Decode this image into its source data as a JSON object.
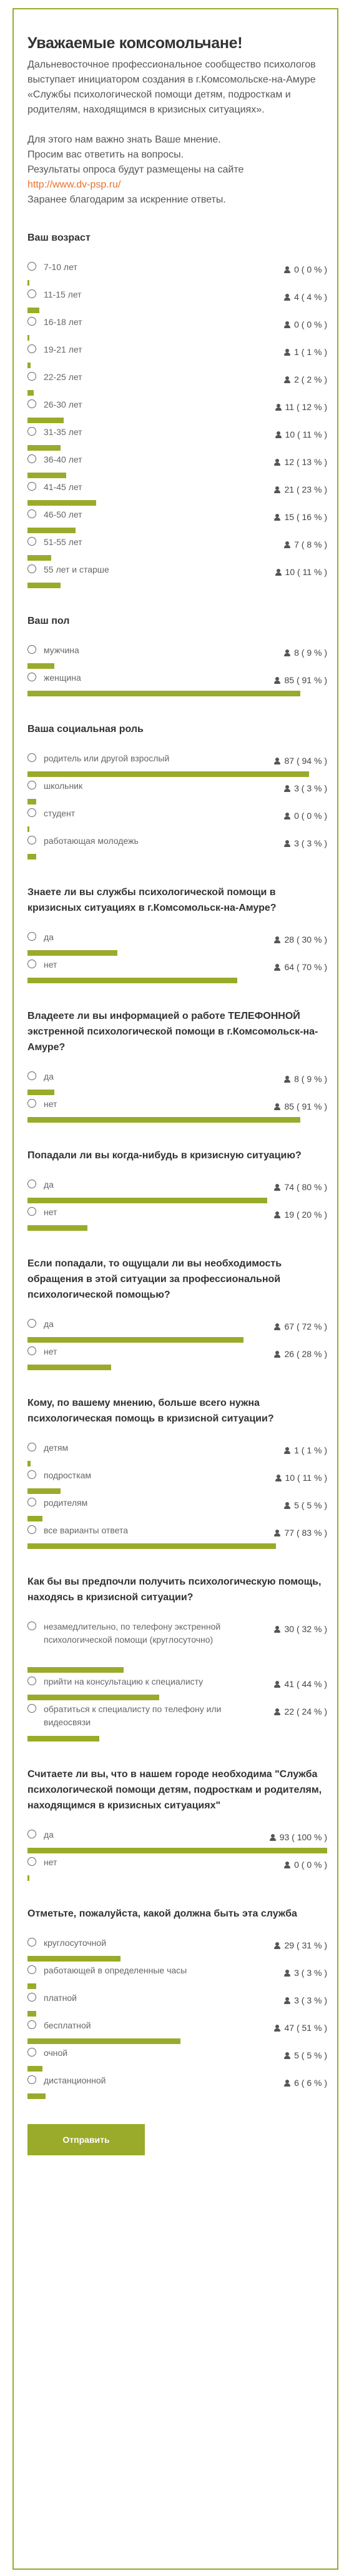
{
  "page": {
    "title": "Уважаемые комсомольчане!",
    "intro": [
      "Дальневосточное профессиональное сообщество психологов выступает инициатором создания в г.Комсомольске-на-Амуре «Службы психологической помощи детям, подросткам и родителям, находящимся в кризисных ситуациях».",
      "",
      "Для этого нам важно знать Ваше мнение.",
      "Просим вас ответить на вопросы.",
      "Результаты опроса будут размещены на сайте",
      "http://www.dv-psp.ru/",
      "Заранее благодарим за искренние ответы."
    ],
    "submit_label": "Отправить",
    "accent_color": "#9aab2b",
    "link_color": "#e8732a"
  },
  "questions": [
    {
      "title": "Ваш возраст",
      "options": [
        {
          "label": "7-10 лет",
          "count": "0",
          "percent": "0 %",
          "fraction": 0.0
        },
        {
          "label": "11-15 лет",
          "count": "4",
          "percent": "4 %",
          "fraction": 0.04
        },
        {
          "label": "16-18 лет",
          "count": "0",
          "percent": "0 %",
          "fraction": 0.0
        },
        {
          "label": "19-21 лет",
          "count": "1",
          "percent": "1 %",
          "fraction": 0.01
        },
        {
          "label": "22-25 лет",
          "count": "2",
          "percent": "2 %",
          "fraction": 0.02
        },
        {
          "label": "26-30 лет",
          "count": "11",
          "percent": "12 %",
          "fraction": 0.12
        },
        {
          "label": "31-35 лет",
          "count": "10",
          "percent": "11 %",
          "fraction": 0.11
        },
        {
          "label": "36-40 лет",
          "count": "12",
          "percent": "13 %",
          "fraction": 0.13
        },
        {
          "label": "41-45 лет",
          "count": "21",
          "percent": "23 %",
          "fraction": 0.23
        },
        {
          "label": "46-50 лет",
          "count": "15",
          "percent": "16 %",
          "fraction": 0.16
        },
        {
          "label": "51-55 лет",
          "count": "7",
          "percent": "8 %",
          "fraction": 0.08
        },
        {
          "label": "55 лет и старше",
          "count": "10",
          "percent": "11 %",
          "fraction": 0.11
        }
      ]
    },
    {
      "title": "Ваш пол",
      "options": [
        {
          "label": "мужчина",
          "count": "8",
          "percent": "9 %",
          "fraction": 0.09
        },
        {
          "label": "женщина",
          "count": "85",
          "percent": "91 %",
          "fraction": 0.91
        }
      ]
    },
    {
      "title": "Ваша социальная роль",
      "options": [
        {
          "label": "родитель или другой взрослый",
          "count": "87",
          "percent": "94 %",
          "fraction": 0.94
        },
        {
          "label": "школьник",
          "count": "3",
          "percent": "3 %",
          "fraction": 0.03
        },
        {
          "label": "студент",
          "count": "0",
          "percent": "0 %",
          "fraction": 0.0
        },
        {
          "label": "работающая молодежь",
          "count": "3",
          "percent": "3 %",
          "fraction": 0.03
        }
      ]
    },
    {
      "title": "Знаете ли вы службы психологической помощи в кризисных ситуациях в г.Комсомольск-на-Амуре?",
      "options": [
        {
          "label": "да",
          "count": "28",
          "percent": "30 %",
          "fraction": 0.3
        },
        {
          "label": "нет",
          "count": "64",
          "percent": "70 %",
          "fraction": 0.7
        }
      ]
    },
    {
      "title": "Владеете ли вы информацией о работе ТЕЛЕФОННОЙ экстренной психологической помощи в г.Комсомольск-на-Амуре?",
      "options": [
        {
          "label": "да",
          "count": "8",
          "percent": "9 %",
          "fraction": 0.09
        },
        {
          "label": "нет",
          "count": "85",
          "percent": "91 %",
          "fraction": 0.91
        }
      ]
    },
    {
      "title": "Попадали ли вы когда-нибудь в кризисную ситуацию?",
      "options": [
        {
          "label": "да",
          "count": "74",
          "percent": "80 %",
          "fraction": 0.8
        },
        {
          "label": "нет",
          "count": "19",
          "percent": "20 %",
          "fraction": 0.2
        }
      ]
    },
    {
      "title": "Если попадали, то ощущали ли вы необходимость обращения в этой ситуации за профессиональной психологической помощью?",
      "options": [
        {
          "label": "да",
          "count": "67",
          "percent": "72 %",
          "fraction": 0.72
        },
        {
          "label": "нет",
          "count": "26",
          "percent": "28 %",
          "fraction": 0.28
        }
      ]
    },
    {
      "title": "Кому, по вашему мнению, больше всего нужна психологическая помощь в кризисной ситуации?",
      "options": [
        {
          "label": "детям",
          "count": "1",
          "percent": "1 %",
          "fraction": 0.01
        },
        {
          "label": "подросткам",
          "count": "10",
          "percent": "11 %",
          "fraction": 0.11
        },
        {
          "label": "родителям",
          "count": "5",
          "percent": "5 %",
          "fraction": 0.05
        },
        {
          "label": "все варианты ответа",
          "count": "77",
          "percent": "83 %",
          "fraction": 0.83
        }
      ]
    },
    {
      "title": "Как бы вы предпочли получить психологическую помощь, находясь в кризисной ситуации?",
      "options": [
        {
          "label": "незамедлительно, по телефону экстренной психологической помощи (круглосуточно)",
          "count": "30",
          "percent": "32 %",
          "fraction": 0.32,
          "lines": 3
        },
        {
          "label": "прийти на консультацию к специалисту",
          "count": "41",
          "percent": "44 %",
          "fraction": 0.44
        },
        {
          "label": "обратиться к специалисту по телефону или видеосвязи",
          "count": "22",
          "percent": "24 %",
          "fraction": 0.24,
          "lines": 2
        }
      ]
    },
    {
      "title": "Считаете ли вы, что в нашем городе необходима \"Служба психологической помощи детям, подросткам и родителям, находящимся в кризисных ситуациях\"",
      "options": [
        {
          "label": "да",
          "count": "93",
          "percent": "100 %",
          "fraction": 1.0
        },
        {
          "label": "нет",
          "count": "0",
          "percent": "0 %",
          "fraction": 0.0
        }
      ]
    },
    {
      "title": "Отметьте, пожалуйста, какой должна быть эта служба",
      "options": [
        {
          "label": "круглосуточной",
          "count": "29",
          "percent": "31 %",
          "fraction": 0.31
        },
        {
          "label": "работающей в определенные часы",
          "count": "3",
          "percent": "3 %",
          "fraction": 0.03
        },
        {
          "label": "платной",
          "count": "3",
          "percent": "3 %",
          "fraction": 0.03
        },
        {
          "label": "бесплатной",
          "count": "47",
          "percent": "51 %",
          "fraction": 0.51
        },
        {
          "label": "очной",
          "count": "5",
          "percent": "5 %",
          "fraction": 0.05
        },
        {
          "label": "дистанционной",
          "count": "6",
          "percent": "6 %",
          "fraction": 0.06
        }
      ]
    }
  ]
}
